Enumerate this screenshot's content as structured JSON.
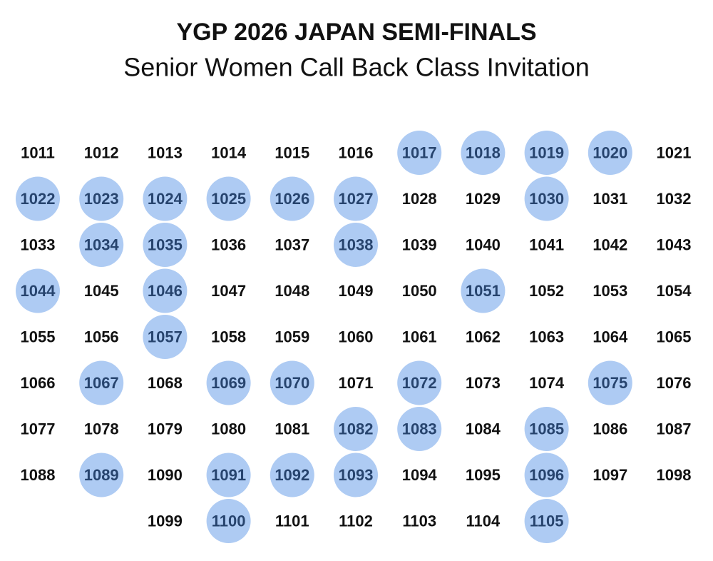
{
  "header": {
    "title": "YGP 2026 JAPAN SEMI-FINALS",
    "subtitle": "Senior Women Call Back Class Invitation"
  },
  "grid": {
    "highlight_color": "#aecbf3",
    "rows": [
      [
        {
          "label": "1011",
          "invited": false
        },
        {
          "label": "1012",
          "invited": false
        },
        {
          "label": "1013",
          "invited": false
        },
        {
          "label": "1014",
          "invited": false
        },
        {
          "label": "1015",
          "invited": false
        },
        {
          "label": "1016",
          "invited": false
        },
        {
          "label": "1017",
          "invited": true
        },
        {
          "label": "1018",
          "invited": true
        },
        {
          "label": "1019",
          "invited": true
        },
        {
          "label": "1020",
          "invited": true
        },
        {
          "label": "1021",
          "invited": false
        }
      ],
      [
        {
          "label": "1022",
          "invited": true
        },
        {
          "label": "1023",
          "invited": true
        },
        {
          "label": "1024",
          "invited": true
        },
        {
          "label": "1025",
          "invited": true
        },
        {
          "label": "1026",
          "invited": true
        },
        {
          "label": "1027",
          "invited": true
        },
        {
          "label": "1028",
          "invited": false
        },
        {
          "label": "1029",
          "invited": false
        },
        {
          "label": "1030",
          "invited": true
        },
        {
          "label": "1031",
          "invited": false
        },
        {
          "label": "1032",
          "invited": false
        }
      ],
      [
        {
          "label": "1033",
          "invited": false
        },
        {
          "label": "1034",
          "invited": true
        },
        {
          "label": "1035",
          "invited": true
        },
        {
          "label": "1036",
          "invited": false
        },
        {
          "label": "1037",
          "invited": false
        },
        {
          "label": "1038",
          "invited": true
        },
        {
          "label": "1039",
          "invited": false
        },
        {
          "label": "1040",
          "invited": false
        },
        {
          "label": "1041",
          "invited": false
        },
        {
          "label": "1042",
          "invited": false
        },
        {
          "label": "1043",
          "invited": false
        }
      ],
      [
        {
          "label": "1044",
          "invited": true
        },
        {
          "label": "1045",
          "invited": false
        },
        {
          "label": "1046",
          "invited": true
        },
        {
          "label": "1047",
          "invited": false
        },
        {
          "label": "1048",
          "invited": false
        },
        {
          "label": "1049",
          "invited": false
        },
        {
          "label": "1050",
          "invited": false
        },
        {
          "label": "1051",
          "invited": true
        },
        {
          "label": "1052",
          "invited": false
        },
        {
          "label": "1053",
          "invited": false
        },
        {
          "label": "1054",
          "invited": false
        }
      ],
      [
        {
          "label": "1055",
          "invited": false
        },
        {
          "label": "1056",
          "invited": false
        },
        {
          "label": "1057",
          "invited": true
        },
        {
          "label": "1058",
          "invited": false
        },
        {
          "label": "1059",
          "invited": false
        },
        {
          "label": "1060",
          "invited": false
        },
        {
          "label": "1061",
          "invited": false
        },
        {
          "label": "1062",
          "invited": false
        },
        {
          "label": "1063",
          "invited": false
        },
        {
          "label": "1064",
          "invited": false
        },
        {
          "label": "1065",
          "invited": false
        }
      ],
      [
        {
          "label": "1066",
          "invited": false
        },
        {
          "label": "1067",
          "invited": true
        },
        {
          "label": "1068",
          "invited": false
        },
        {
          "label": "1069",
          "invited": true
        },
        {
          "label": "1070",
          "invited": true
        },
        {
          "label": "1071",
          "invited": false
        },
        {
          "label": "1072",
          "invited": true
        },
        {
          "label": "1073",
          "invited": false
        },
        {
          "label": "1074",
          "invited": false
        },
        {
          "label": "1075",
          "invited": true
        },
        {
          "label": "1076",
          "invited": false
        }
      ],
      [
        {
          "label": "1077",
          "invited": false
        },
        {
          "label": "1078",
          "invited": false
        },
        {
          "label": "1079",
          "invited": false
        },
        {
          "label": "1080",
          "invited": false
        },
        {
          "label": "1081",
          "invited": false
        },
        {
          "label": "1082",
          "invited": true
        },
        {
          "label": "1083",
          "invited": true
        },
        {
          "label": "1084",
          "invited": false
        },
        {
          "label": "1085",
          "invited": true
        },
        {
          "label": "1086",
          "invited": false
        },
        {
          "label": "1087",
          "invited": false
        }
      ],
      [
        {
          "label": "1088",
          "invited": false
        },
        {
          "label": "1089",
          "invited": true
        },
        {
          "label": "1090",
          "invited": false
        },
        {
          "label": "1091",
          "invited": true
        },
        {
          "label": "1092",
          "invited": true
        },
        {
          "label": "1093",
          "invited": true
        },
        {
          "label": "1094",
          "invited": false
        },
        {
          "label": "1095",
          "invited": false
        },
        {
          "label": "1096",
          "invited": true
        },
        {
          "label": "1097",
          "invited": false
        },
        {
          "label": "1098",
          "invited": false
        }
      ],
      [
        null,
        null,
        {
          "label": "1099",
          "invited": false
        },
        {
          "label": "1100",
          "invited": true
        },
        {
          "label": "1101",
          "invited": false
        },
        {
          "label": "1102",
          "invited": false
        },
        {
          "label": "1103",
          "invited": false
        },
        {
          "label": "1104",
          "invited": false
        },
        {
          "label": "1105",
          "invited": true
        }
      ]
    ]
  }
}
